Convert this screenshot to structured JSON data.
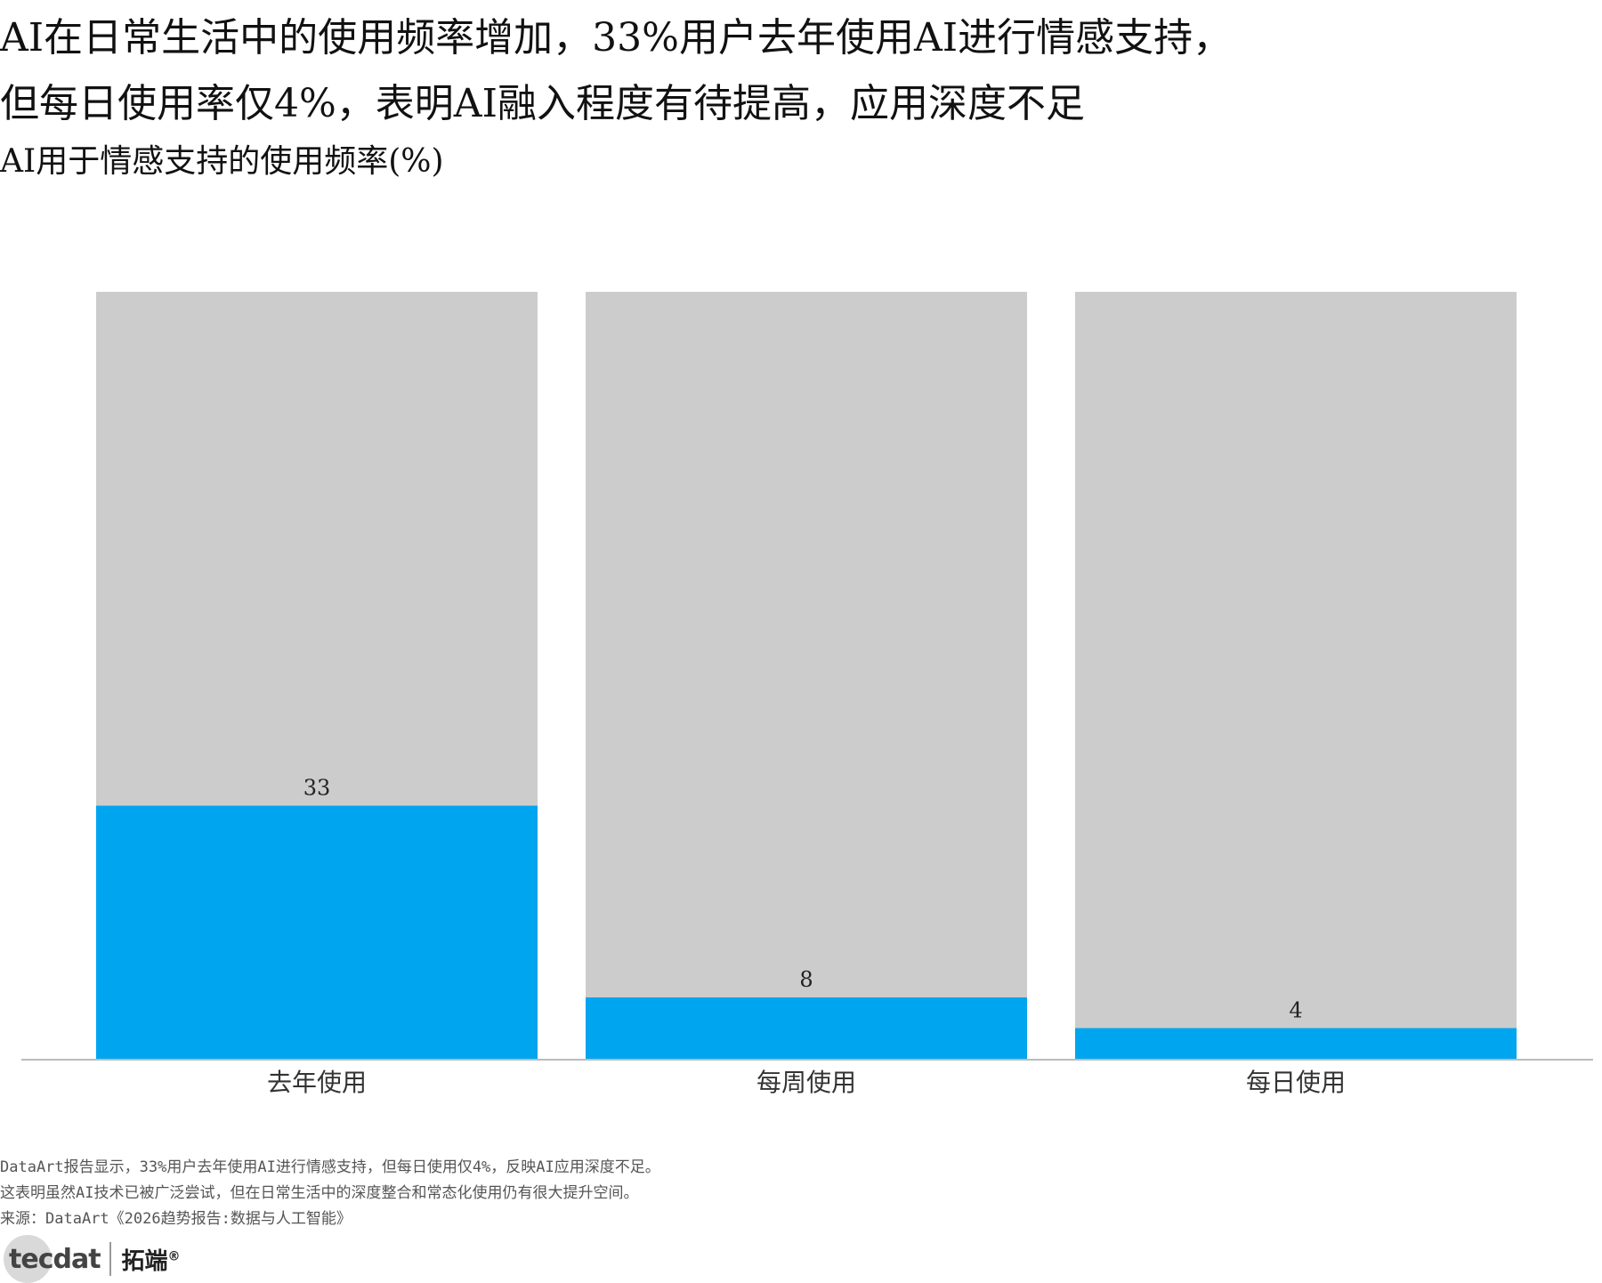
{
  "title_lines": [
    "AI在日常生活中的使用频率增加，33%用户去年使用AI进行情感支持，",
    "但每日使用率仅4%，表明AI融入程度有待提高，应用深度不足"
  ],
  "subtitle": "AI用于情感支持的使用频率(%)",
  "chart_data": {
    "type": "bar",
    "categories": [
      "去年使用",
      "每周使用",
      "每日使用"
    ],
    "values": [
      33,
      8,
      4
    ],
    "value_labels": [
      "33",
      "8",
      "4"
    ],
    "ylim": [
      0,
      100
    ],
    "background_bar_value": 100,
    "colors": {
      "bar": "#00a5ef",
      "background": "#cccccc",
      "axis": "#bbbbbb"
    },
    "grid": false,
    "legend": "none"
  },
  "footer": {
    "lines": [
      "DataArt报告显示，33%用户去年使用AI进行情感支持，但每日使用仅4%，反映AI应用深度不足。",
      "这表明虽然AI技术已被广泛尝试，但在日常生活中的深度整合和常态化使用仍有很大提升空间。",
      "来源：DataArt《2026趋势报告:数据与人工智能》"
    ]
  },
  "logo": {
    "en": "tecdat",
    "cn": "拓端",
    "mark": "®"
  }
}
